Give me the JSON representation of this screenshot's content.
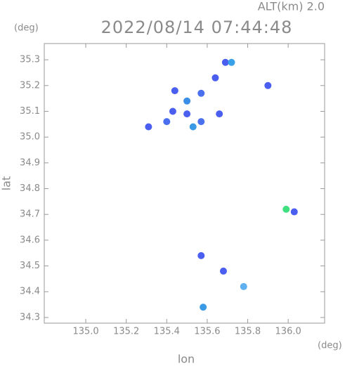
{
  "chart_data": {
    "type": "scatter",
    "title": "2022/08/14 07:44:48",
    "subtitle": "ALT(km)  2.0",
    "x_label": "lon",
    "y_label": "lat",
    "x_unit": "(deg)",
    "y_unit": "(deg)",
    "xlim": [
      134.795,
      136.18
    ],
    "ylim": [
      34.278,
      35.363
    ],
    "xticks": [
      {
        "value": 135,
        "label": "135.0"
      },
      135.2,
      135.4,
      135.6,
      135.8,
      {
        "value": 136,
        "label": "136.0"
      }
    ],
    "yticks": [
      34.3,
      34.4,
      34.5,
      34.6,
      34.7,
      34.8,
      34.9,
      {
        "value": 35,
        "label": "35.0"
      },
      35.1,
      35.2,
      35.3
    ],
    "x": [
      135.69,
      135.72,
      135.64,
      135.9,
      135.44,
      135.57,
      135.5,
      135.43,
      135.4,
      135.5,
      135.53,
      135.57,
      135.66,
      135.31,
      135.99,
      136.03,
      135.57,
      135.68,
      135.78,
      135.58
    ],
    "y": [
      35.29,
      35.29,
      35.23,
      35.2,
      35.18,
      35.17,
      35.14,
      35.1,
      35.06,
      35.09,
      35.04,
      35.06,
      35.09,
      35.04,
      34.72,
      34.71,
      34.54,
      34.48,
      34.42,
      34.34
    ],
    "colors": [
      "#4a5ef0",
      "#3aa0e8",
      "#4a5ef0",
      "#4a5ef0",
      "#4a5ef0",
      "#4a70ee",
      "#3a8ee8",
      "#4a5ef0",
      "#4a6ef0",
      "#4a5ef0",
      "#3a9ae6",
      "#4a70ee",
      "#4a5ef0",
      "#4a5ef0",
      "#40e080",
      "#4a5ef0",
      "#4a5ef0",
      "#4a5ef0",
      "#60b0f0",
      "#3a9ae6"
    ]
  }
}
